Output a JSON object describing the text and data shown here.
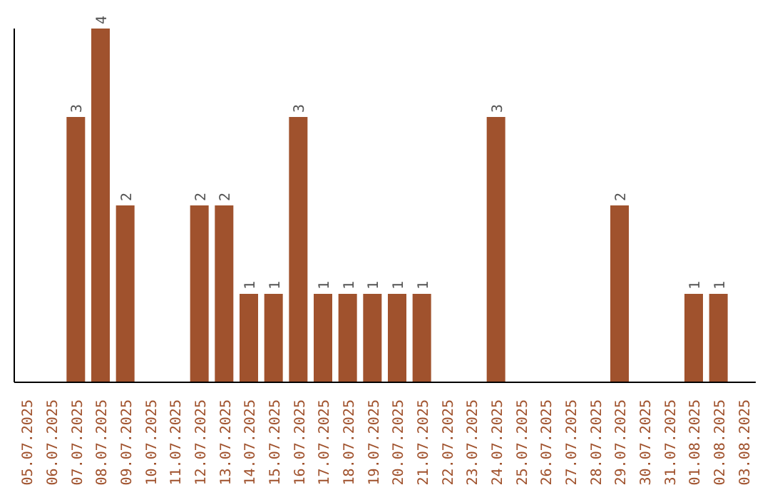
{
  "chart_data": {
    "type": "bar",
    "categories": [
      "05.07.2025",
      "06.07.2025",
      "07.07.2025",
      "08.07.2025",
      "09.07.2025",
      "10.07.2025",
      "11.07.2025",
      "12.07.2025",
      "13.07.2025",
      "14.07.2025",
      "15.07.2025",
      "16.07.2025",
      "17.07.2025",
      "18.07.2025",
      "19.07.2025",
      "20.07.2025",
      "21.07.2025",
      "22.07.2025",
      "23.07.2025",
      "24.07.2025",
      "25.07.2025",
      "26.07.2025",
      "27.07.2025",
      "28.07.2025",
      "29.07.2025",
      "30.07.2025",
      "31.07.2025",
      "01.08.2025",
      "02.08.2025",
      "03.08.2025"
    ],
    "values": [
      0,
      0,
      3,
      4,
      2,
      0,
      0,
      2,
      2,
      1,
      1,
      3,
      1,
      1,
      1,
      1,
      1,
      0,
      0,
      3,
      0,
      0,
      0,
      0,
      2,
      0,
      0,
      1,
      1,
      0
    ],
    "value_labels": [
      null,
      null,
      "3",
      "4",
      "2",
      null,
      null,
      "2",
      "2",
      "1",
      "1",
      "3",
      "1",
      "1",
      "1",
      "1",
      "1",
      null,
      null,
      "3",
      null,
      null,
      null,
      null,
      "2",
      null,
      null,
      "1",
      "1",
      null
    ],
    "color": "#a0522d",
    "tick_labels": "x",
    "grid": false
  }
}
